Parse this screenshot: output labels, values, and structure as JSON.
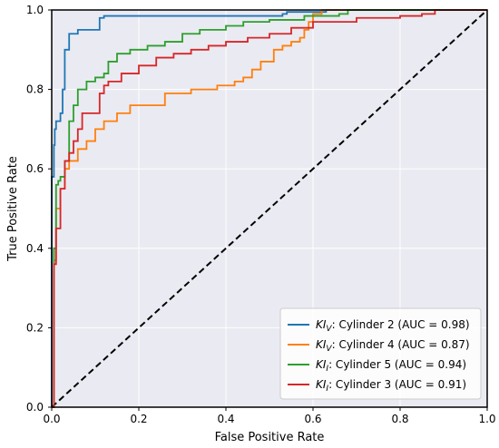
{
  "chart_data": {
    "type": "line",
    "title": "",
    "xlabel": "False Positive Rate",
    "ylabel": "True Positive Rate",
    "xlim": [
      0,
      1
    ],
    "ylim": [
      0,
      1
    ],
    "xticks": [
      "0.0",
      "0.2",
      "0.4",
      "0.6",
      "0.8",
      "1.0"
    ],
    "yticks": [
      "0.0",
      "0.2",
      "0.4",
      "0.6",
      "0.8",
      "1.0"
    ],
    "grid": true,
    "legend_position": "lower-right",
    "series": [
      {
        "name_italic": "KI",
        "name_sub": "V",
        "name_rest": ": Cylinder 2 (AUC = 0.98)",
        "color": "#1f77b4",
        "points": [
          [
            0,
            0
          ],
          [
            0,
            0.58
          ],
          [
            0.005,
            0.66
          ],
          [
            0.007,
            0.7
          ],
          [
            0.01,
            0.72
          ],
          [
            0.02,
            0.74
          ],
          [
            0.025,
            0.8
          ],
          [
            0.03,
            0.9
          ],
          [
            0.04,
            0.94
          ],
          [
            0.05,
            0.94
          ],
          [
            0.06,
            0.95
          ],
          [
            0.1,
            0.95
          ],
          [
            0.11,
            0.98
          ],
          [
            0.12,
            0.985
          ],
          [
            0.4,
            0.985
          ],
          [
            0.53,
            0.99
          ],
          [
            0.54,
            0.995
          ],
          [
            0.62,
            0.995
          ],
          [
            0.63,
            1.0
          ],
          [
            1,
            1
          ]
        ]
      },
      {
        "name_italic": "KI",
        "name_sub": "V",
        "name_rest": ": Cylinder 4 (AUC = 0.87)",
        "color": "#ff7f0e",
        "points": [
          [
            0,
            0
          ],
          [
            0.005,
            0.37
          ],
          [
            0.01,
            0.5
          ],
          [
            0.02,
            0.55
          ],
          [
            0.03,
            0.6
          ],
          [
            0.04,
            0.62
          ],
          [
            0.06,
            0.65
          ],
          [
            0.08,
            0.67
          ],
          [
            0.1,
            0.7
          ],
          [
            0.12,
            0.72
          ],
          [
            0.15,
            0.74
          ],
          [
            0.18,
            0.76
          ],
          [
            0.22,
            0.76
          ],
          [
            0.26,
            0.79
          ],
          [
            0.32,
            0.8
          ],
          [
            0.38,
            0.81
          ],
          [
            0.42,
            0.82
          ],
          [
            0.44,
            0.83
          ],
          [
            0.46,
            0.85
          ],
          [
            0.48,
            0.87
          ],
          [
            0.5,
            0.87
          ],
          [
            0.51,
            0.9
          ],
          [
            0.53,
            0.91
          ],
          [
            0.55,
            0.92
          ],
          [
            0.57,
            0.93
          ],
          [
            0.58,
            0.95
          ],
          [
            0.59,
            0.97
          ],
          [
            0.6,
            0.99
          ],
          [
            0.62,
            1.0
          ],
          [
            1,
            1
          ]
        ]
      },
      {
        "name_italic": "KI",
        "name_sub": "I",
        "name_rest": ": Cylinder 5 (AUC = 0.94)",
        "color": "#2ca02c",
        "points": [
          [
            0,
            0
          ],
          [
            0.005,
            0.4
          ],
          [
            0.01,
            0.56
          ],
          [
            0.015,
            0.57
          ],
          [
            0.02,
            0.58
          ],
          [
            0.03,
            0.62
          ],
          [
            0.04,
            0.72
          ],
          [
            0.05,
            0.76
          ],
          [
            0.06,
            0.8
          ],
          [
            0.08,
            0.82
          ],
          [
            0.1,
            0.83
          ],
          [
            0.12,
            0.84
          ],
          [
            0.13,
            0.87
          ],
          [
            0.15,
            0.89
          ],
          [
            0.18,
            0.9
          ],
          [
            0.22,
            0.91
          ],
          [
            0.26,
            0.92
          ],
          [
            0.3,
            0.94
          ],
          [
            0.34,
            0.95
          ],
          [
            0.4,
            0.96
          ],
          [
            0.44,
            0.97
          ],
          [
            0.5,
            0.975
          ],
          [
            0.58,
            0.985
          ],
          [
            0.66,
            0.99
          ],
          [
            0.68,
            1.0
          ],
          [
            1,
            1
          ]
        ]
      },
      {
        "name_italic": "KI",
        "name_sub": "I",
        "name_rest": ": Cylinder 3 (AUC = 0.91)",
        "color": "#d62728",
        "points": [
          [
            0,
            0
          ],
          [
            0.005,
            0.36
          ],
          [
            0.01,
            0.45
          ],
          [
            0.02,
            0.55
          ],
          [
            0.03,
            0.62
          ],
          [
            0.04,
            0.64
          ],
          [
            0.05,
            0.67
          ],
          [
            0.06,
            0.7
          ],
          [
            0.07,
            0.74
          ],
          [
            0.1,
            0.74
          ],
          [
            0.11,
            0.79
          ],
          [
            0.12,
            0.81
          ],
          [
            0.13,
            0.82
          ],
          [
            0.16,
            0.84
          ],
          [
            0.2,
            0.86
          ],
          [
            0.24,
            0.88
          ],
          [
            0.28,
            0.89
          ],
          [
            0.32,
            0.9
          ],
          [
            0.36,
            0.91
          ],
          [
            0.4,
            0.92
          ],
          [
            0.45,
            0.93
          ],
          [
            0.5,
            0.94
          ],
          [
            0.55,
            0.955
          ],
          [
            0.6,
            0.97
          ],
          [
            0.7,
            0.98
          ],
          [
            0.8,
            0.985
          ],
          [
            0.85,
            0.99
          ],
          [
            0.88,
            1.0
          ],
          [
            1,
            1
          ]
        ]
      }
    ],
    "reference_line": {
      "points": [
        [
          0,
          0
        ],
        [
          1,
          1
        ]
      ],
      "color": "#000000",
      "style": "dashed"
    }
  }
}
